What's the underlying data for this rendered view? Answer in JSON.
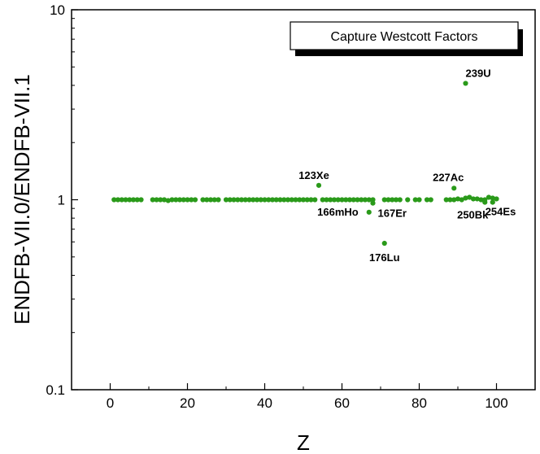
{
  "chart_data": {
    "type": "scatter",
    "title": "Capture Westcott Factors",
    "xlabel": "Z",
    "ylabel": "ENDFB-VII.0/ENDFB-VII.1",
    "xlim": [
      -10,
      110
    ],
    "ylim": [
      0.1,
      10
    ],
    "yscale": "log",
    "grid": false,
    "legend_placement": "top-right",
    "marker_color": "#2a9a1a",
    "x_ticks": [
      0,
      20,
      40,
      60,
      80,
      100
    ],
    "x_tick_labels": [
      "0",
      "20",
      "40",
      "60",
      "80",
      "100"
    ],
    "y_ticks": [
      0.1,
      1,
      10
    ],
    "y_tick_labels": [
      "0.1",
      "1",
      "10"
    ],
    "points": [
      {
        "x": 1,
        "y": 1.0
      },
      {
        "x": 2,
        "y": 1.0
      },
      {
        "x": 3,
        "y": 1.0
      },
      {
        "x": 4,
        "y": 1.0
      },
      {
        "x": 5,
        "y": 1.0
      },
      {
        "x": 6,
        "y": 1.0
      },
      {
        "x": 7,
        "y": 1.0
      },
      {
        "x": 8,
        "y": 1.0
      },
      {
        "x": 11,
        "y": 1.0
      },
      {
        "x": 12,
        "y": 1.0
      },
      {
        "x": 13,
        "y": 1.0
      },
      {
        "x": 14,
        "y": 1.0
      },
      {
        "x": 15,
        "y": 0.99
      },
      {
        "x": 16,
        "y": 1.0
      },
      {
        "x": 17,
        "y": 1.0
      },
      {
        "x": 18,
        "y": 1.0
      },
      {
        "x": 19,
        "y": 1.0
      },
      {
        "x": 20,
        "y": 1.0
      },
      {
        "x": 21,
        "y": 1.0
      },
      {
        "x": 22,
        "y": 1.0
      },
      {
        "x": 24,
        "y": 1.0
      },
      {
        "x": 25,
        "y": 1.0
      },
      {
        "x": 26,
        "y": 1.0
      },
      {
        "x": 27,
        "y": 1.0
      },
      {
        "x": 28,
        "y": 1.0
      },
      {
        "x": 30,
        "y": 1.0
      },
      {
        "x": 31,
        "y": 1.0
      },
      {
        "x": 32,
        "y": 1.0
      },
      {
        "x": 33,
        "y": 1.0
      },
      {
        "x": 34,
        "y": 1.0
      },
      {
        "x": 35,
        "y": 1.0
      },
      {
        "x": 36,
        "y": 1.0
      },
      {
        "x": 37,
        "y": 1.0
      },
      {
        "x": 38,
        "y": 1.0
      },
      {
        "x": 39,
        "y": 1.0
      },
      {
        "x": 40,
        "y": 1.0
      },
      {
        "x": 41,
        "y": 1.0
      },
      {
        "x": 42,
        "y": 1.0
      },
      {
        "x": 43,
        "y": 1.0
      },
      {
        "x": 44,
        "y": 1.0
      },
      {
        "x": 45,
        "y": 1.0
      },
      {
        "x": 46,
        "y": 1.0
      },
      {
        "x": 47,
        "y": 1.0
      },
      {
        "x": 48,
        "y": 1.0
      },
      {
        "x": 49,
        "y": 1.0
      },
      {
        "x": 50,
        "y": 1.0
      },
      {
        "x": 51,
        "y": 1.0
      },
      {
        "x": 52,
        "y": 1.0
      },
      {
        "x": 53,
        "y": 1.0
      },
      {
        "x": 54,
        "y": 1.19
      },
      {
        "x": 55,
        "y": 1.0
      },
      {
        "x": 56,
        "y": 1.0
      },
      {
        "x": 57,
        "y": 1.0
      },
      {
        "x": 58,
        "y": 1.0
      },
      {
        "x": 59,
        "y": 1.0
      },
      {
        "x": 60,
        "y": 1.0
      },
      {
        "x": 61,
        "y": 1.0
      },
      {
        "x": 62,
        "y": 1.0
      },
      {
        "x": 63,
        "y": 1.0
      },
      {
        "x": 64,
        "y": 1.0
      },
      {
        "x": 65,
        "y": 1.0
      },
      {
        "x": 66,
        "y": 1.0
      },
      {
        "x": 67,
        "y": 0.86
      },
      {
        "x": 67,
        "y": 1.0
      },
      {
        "x": 68,
        "y": 0.96
      },
      {
        "x": 68,
        "y": 1.0
      },
      {
        "x": 71,
        "y": 0.59
      },
      {
        "x": 71,
        "y": 1.0
      },
      {
        "x": 72,
        "y": 1.0
      },
      {
        "x": 73,
        "y": 1.0
      },
      {
        "x": 74,
        "y": 1.0
      },
      {
        "x": 75,
        "y": 1.0
      },
      {
        "x": 77,
        "y": 1.0
      },
      {
        "x": 79,
        "y": 1.0
      },
      {
        "x": 80,
        "y": 1.0
      },
      {
        "x": 82,
        "y": 1.0
      },
      {
        "x": 83,
        "y": 1.0
      },
      {
        "x": 87,
        "y": 1.0
      },
      {
        "x": 88,
        "y": 1.0
      },
      {
        "x": 89,
        "y": 1.15
      },
      {
        "x": 89,
        "y": 1.0
      },
      {
        "x": 90,
        "y": 1.01
      },
      {
        "x": 91,
        "y": 1.0
      },
      {
        "x": 92,
        "y": 4.1
      },
      {
        "x": 92,
        "y": 1.02
      },
      {
        "x": 93,
        "y": 1.03
      },
      {
        "x": 94,
        "y": 1.01
      },
      {
        "x": 95,
        "y": 1.01
      },
      {
        "x": 96,
        "y": 1.0
      },
      {
        "x": 97,
        "y": 0.97
      },
      {
        "x": 97,
        "y": 1.0
      },
      {
        "x": 98,
        "y": 1.03
      },
      {
        "x": 99,
        "y": 0.97
      },
      {
        "x": 99,
        "y": 1.02
      },
      {
        "x": 100,
        "y": 1.01
      }
    ],
    "annotations": [
      {
        "text": "239U",
        "x": 92,
        "y": 4.1,
        "dx": 0,
        "dy": -8,
        "anchor": "start"
      },
      {
        "text": "123Xe",
        "x": 54,
        "y": 1.19,
        "dx": -6,
        "dy": -8,
        "anchor": "middle"
      },
      {
        "text": "227Ac",
        "x": 89,
        "y": 1.15,
        "dx": -7,
        "dy": -9,
        "anchor": "middle"
      },
      {
        "text": "166mHo",
        "x": 67,
        "y": 0.86,
        "dx": -13,
        "dy": 4,
        "anchor": "end"
      },
      {
        "text": "167Er",
        "x": 68,
        "y": 0.96,
        "dx": 6,
        "dy": 17,
        "anchor": "start"
      },
      {
        "text": "176Lu",
        "x": 71,
        "y": 0.59,
        "dx": 0,
        "dy": 22,
        "anchor": "middle"
      },
      {
        "text": "250Bk",
        "x": 97,
        "y": 0.97,
        "dx": -15,
        "dy": 20,
        "anchor": "middle"
      },
      {
        "text": "254Es",
        "x": 100,
        "y": 1.01,
        "dx": 5,
        "dy": 20,
        "anchor": "middle"
      }
    ]
  }
}
